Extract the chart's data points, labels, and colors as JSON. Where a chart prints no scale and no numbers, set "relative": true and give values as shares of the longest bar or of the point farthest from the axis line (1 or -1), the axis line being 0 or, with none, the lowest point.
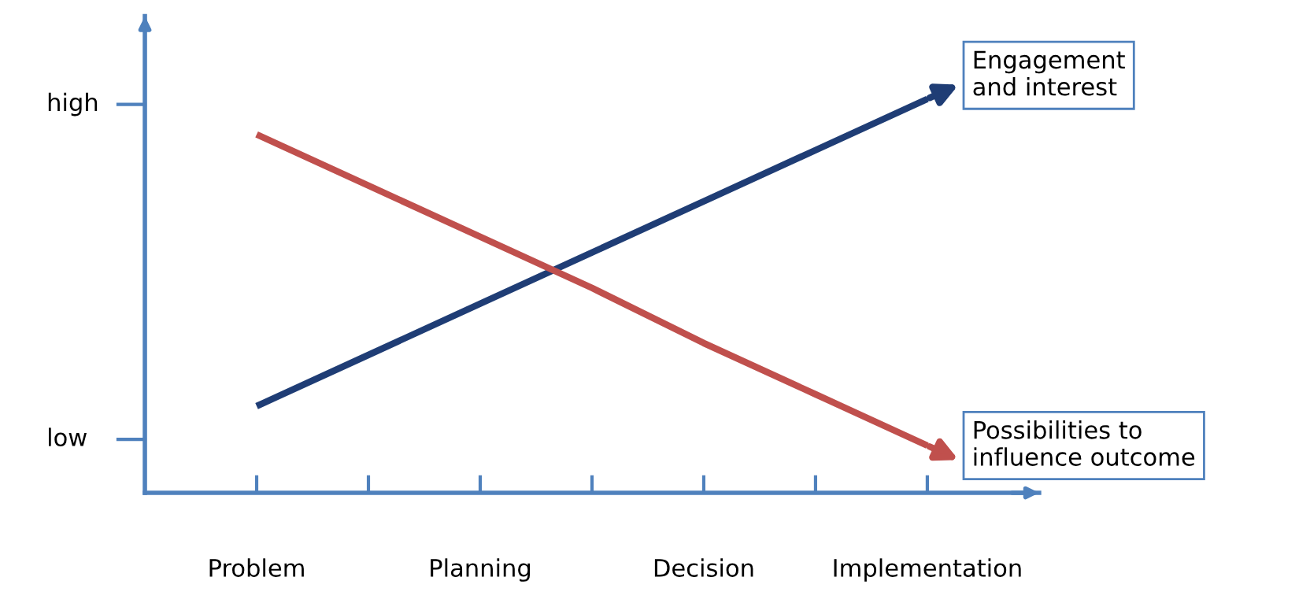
{
  "chart_data": {
    "type": "line",
    "relative": true,
    "categories": [
      "Problem",
      null,
      "Planning",
      null,
      "Decision",
      null,
      "Implementation"
    ],
    "annotations": [
      "low",
      "high"
    ],
    "series": [
      {
        "name": "Engagement\nand interest",
        "color": "#1f3d75",
        "values": [
          0.22,
          0.35,
          0.48,
          0.61,
          0.74,
          0.87,
          1.0
        ]
      },
      {
        "name": "Possibilities to\ninfluence outcome",
        "color": "#c0504d",
        "values": [
          0.91,
          0.78,
          0.65,
          0.52,
          0.38,
          0.25,
          0.12
        ]
      }
    ],
    "marker": "none",
    "line_style": "solid",
    "grid": false,
    "legend": "right"
  }
}
